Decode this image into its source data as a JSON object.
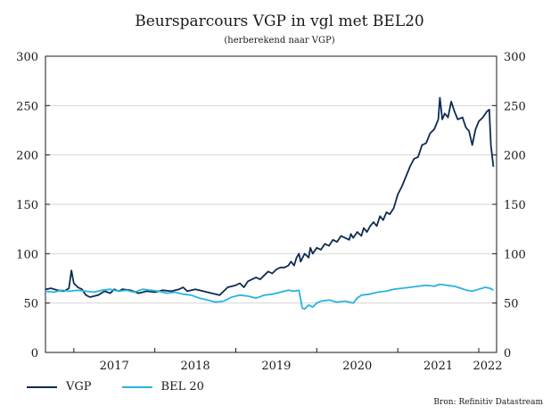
{
  "chart_data": {
    "type": "line",
    "title": "Beursparcours VGP in vgl met BEL20",
    "subtitle": "(herberekend naar VGP)",
    "source": "Bron: Refinitiv Datastream",
    "xlabel": "",
    "ylabel": "",
    "ylim": [
      0,
      300
    ],
    "xlim": [
      2016.65,
      2022.22
    ],
    "yticks": [
      "0",
      "50",
      "100",
      "150",
      "200",
      "250",
      "300"
    ],
    "xticks": [
      {
        "label": "2017",
        "x": 2017.0
      },
      {
        "label": "2018",
        "x": 2018.0
      },
      {
        "label": "2019",
        "x": 2019.0
      },
      {
        "label": "2020",
        "x": 2020.0
      },
      {
        "label": "2021",
        "x": 2021.0
      },
      {
        "label": "2022",
        "x": 2022.0
      }
    ],
    "grid": true,
    "legend_position": "bottom-left",
    "series": [
      {
        "name": "VGP",
        "color": "#0d2b52",
        "points": [
          [
            2016.65,
            64
          ],
          [
            2016.72,
            65
          ],
          [
            2016.8,
            63
          ],
          [
            2016.88,
            62
          ],
          [
            2016.94,
            65
          ],
          [
            2016.97,
            83
          ],
          [
            2017.0,
            70
          ],
          [
            2017.05,
            66
          ],
          [
            2017.1,
            64
          ],
          [
            2017.15,
            58
          ],
          [
            2017.2,
            56
          ],
          [
            2017.3,
            58
          ],
          [
            2017.38,
            62
          ],
          [
            2017.45,
            60
          ],
          [
            2017.5,
            64
          ],
          [
            2017.55,
            62
          ],
          [
            2017.6,
            64
          ],
          [
            2017.7,
            63
          ],
          [
            2017.8,
            60
          ],
          [
            2017.9,
            62
          ],
          [
            2018.0,
            61
          ],
          [
            2018.1,
            63
          ],
          [
            2018.2,
            62
          ],
          [
            2018.3,
            64
          ],
          [
            2018.35,
            66
          ],
          [
            2018.4,
            62
          ],
          [
            2018.5,
            64
          ],
          [
            2018.6,
            62
          ],
          [
            2018.7,
            60
          ],
          [
            2018.8,
            58
          ],
          [
            2018.85,
            62
          ],
          [
            2018.9,
            66
          ],
          [
            2019.0,
            68
          ],
          [
            2019.05,
            70
          ],
          [
            2019.1,
            66
          ],
          [
            2019.15,
            72
          ],
          [
            2019.2,
            74
          ],
          [
            2019.25,
            76
          ],
          [
            2019.3,
            74
          ],
          [
            2019.35,
            78
          ],
          [
            2019.4,
            82
          ],
          [
            2019.45,
            80
          ],
          [
            2019.5,
            84
          ],
          [
            2019.55,
            86
          ],
          [
            2019.6,
            86
          ],
          [
            2019.65,
            88
          ],
          [
            2019.68,
            92
          ],
          [
            2019.72,
            88
          ],
          [
            2019.75,
            96
          ],
          [
            2019.78,
            100
          ],
          [
            2019.8,
            92
          ],
          [
            2019.85,
            100
          ],
          [
            2019.9,
            96
          ],
          [
            2019.92,
            106
          ],
          [
            2019.95,
            100
          ],
          [
            2020.0,
            106
          ],
          [
            2020.05,
            104
          ],
          [
            2020.1,
            110
          ],
          [
            2020.15,
            108
          ],
          [
            2020.2,
            114
          ],
          [
            2020.25,
            112
          ],
          [
            2020.3,
            118
          ],
          [
            2020.35,
            116
          ],
          [
            2020.4,
            114
          ],
          [
            2020.42,
            120
          ],
          [
            2020.45,
            116
          ],
          [
            2020.5,
            122
          ],
          [
            2020.55,
            118
          ],
          [
            2020.58,
            126
          ],
          [
            2020.62,
            122
          ],
          [
            2020.66,
            128
          ],
          [
            2020.7,
            132
          ],
          [
            2020.74,
            128
          ],
          [
            2020.78,
            138
          ],
          [
            2020.82,
            134
          ],
          [
            2020.86,
            142
          ],
          [
            2020.9,
            140
          ],
          [
            2020.95,
            146
          ],
          [
            2021.0,
            160
          ],
          [
            2021.05,
            168
          ],
          [
            2021.1,
            178
          ],
          [
            2021.15,
            188
          ],
          [
            2021.2,
            196
          ],
          [
            2021.25,
            198
          ],
          [
            2021.3,
            210
          ],
          [
            2021.35,
            212
          ],
          [
            2021.4,
            222
          ],
          [
            2021.45,
            226
          ],
          [
            2021.5,
            236
          ],
          [
            2021.52,
            258
          ],
          [
            2021.55,
            236
          ],
          [
            2021.58,
            242
          ],
          [
            2021.62,
            238
          ],
          [
            2021.66,
            254
          ],
          [
            2021.7,
            244
          ],
          [
            2021.74,
            236
          ],
          [
            2021.8,
            238
          ],
          [
            2021.84,
            228
          ],
          [
            2021.88,
            224
          ],
          [
            2021.92,
            210
          ],
          [
            2021.96,
            226
          ],
          [
            2022.0,
            234
          ],
          [
            2022.05,
            238
          ],
          [
            2022.1,
            244
          ],
          [
            2022.13,
            246
          ],
          [
            2022.15,
            210
          ],
          [
            2022.18,
            188
          ]
        ]
      },
      {
        "name": "BEL 20",
        "color": "#29b3e0",
        "points": [
          [
            2016.65,
            62
          ],
          [
            2016.75,
            61
          ],
          [
            2016.85,
            63
          ],
          [
            2016.95,
            62
          ],
          [
            2017.05,
            63
          ],
          [
            2017.15,
            62
          ],
          [
            2017.25,
            61
          ],
          [
            2017.35,
            63
          ],
          [
            2017.45,
            64
          ],
          [
            2017.55,
            62
          ],
          [
            2017.65,
            63
          ],
          [
            2017.75,
            61
          ],
          [
            2017.85,
            64
          ],
          [
            2017.95,
            63
          ],
          [
            2018.05,
            62
          ],
          [
            2018.15,
            60
          ],
          [
            2018.25,
            61
          ],
          [
            2018.35,
            59
          ],
          [
            2018.45,
            58
          ],
          [
            2018.55,
            55
          ],
          [
            2018.65,
            53
          ],
          [
            2018.75,
            51
          ],
          [
            2018.85,
            52
          ],
          [
            2018.95,
            56
          ],
          [
            2019.05,
            58
          ],
          [
            2019.15,
            57
          ],
          [
            2019.25,
            55
          ],
          [
            2019.35,
            58
          ],
          [
            2019.45,
            59
          ],
          [
            2019.55,
            61
          ],
          [
            2019.65,
            63
          ],
          [
            2019.72,
            62
          ],
          [
            2019.78,
            63
          ],
          [
            2019.82,
            45
          ],
          [
            2019.85,
            44
          ],
          [
            2019.9,
            48
          ],
          [
            2019.95,
            46
          ],
          [
            2020.0,
            50
          ],
          [
            2020.05,
            52
          ],
          [
            2020.15,
            53
          ],
          [
            2020.25,
            51
          ],
          [
            2020.35,
            52
          ],
          [
            2020.45,
            50
          ],
          [
            2020.5,
            55
          ],
          [
            2020.55,
            58
          ],
          [
            2020.65,
            59
          ],
          [
            2020.75,
            61
          ],
          [
            2020.85,
            62
          ],
          [
            2020.95,
            64
          ],
          [
            2021.05,
            65
          ],
          [
            2021.15,
            66
          ],
          [
            2021.25,
            67
          ],
          [
            2021.35,
            68
          ],
          [
            2021.45,
            67
          ],
          [
            2021.52,
            69
          ],
          [
            2021.6,
            68
          ],
          [
            2021.7,
            67
          ],
          [
            2021.78,
            65
          ],
          [
            2021.85,
            63
          ],
          [
            2021.92,
            62
          ],
          [
            2022.0,
            64
          ],
          [
            2022.08,
            66
          ],
          [
            2022.14,
            65
          ],
          [
            2022.18,
            63
          ]
        ]
      }
    ]
  }
}
